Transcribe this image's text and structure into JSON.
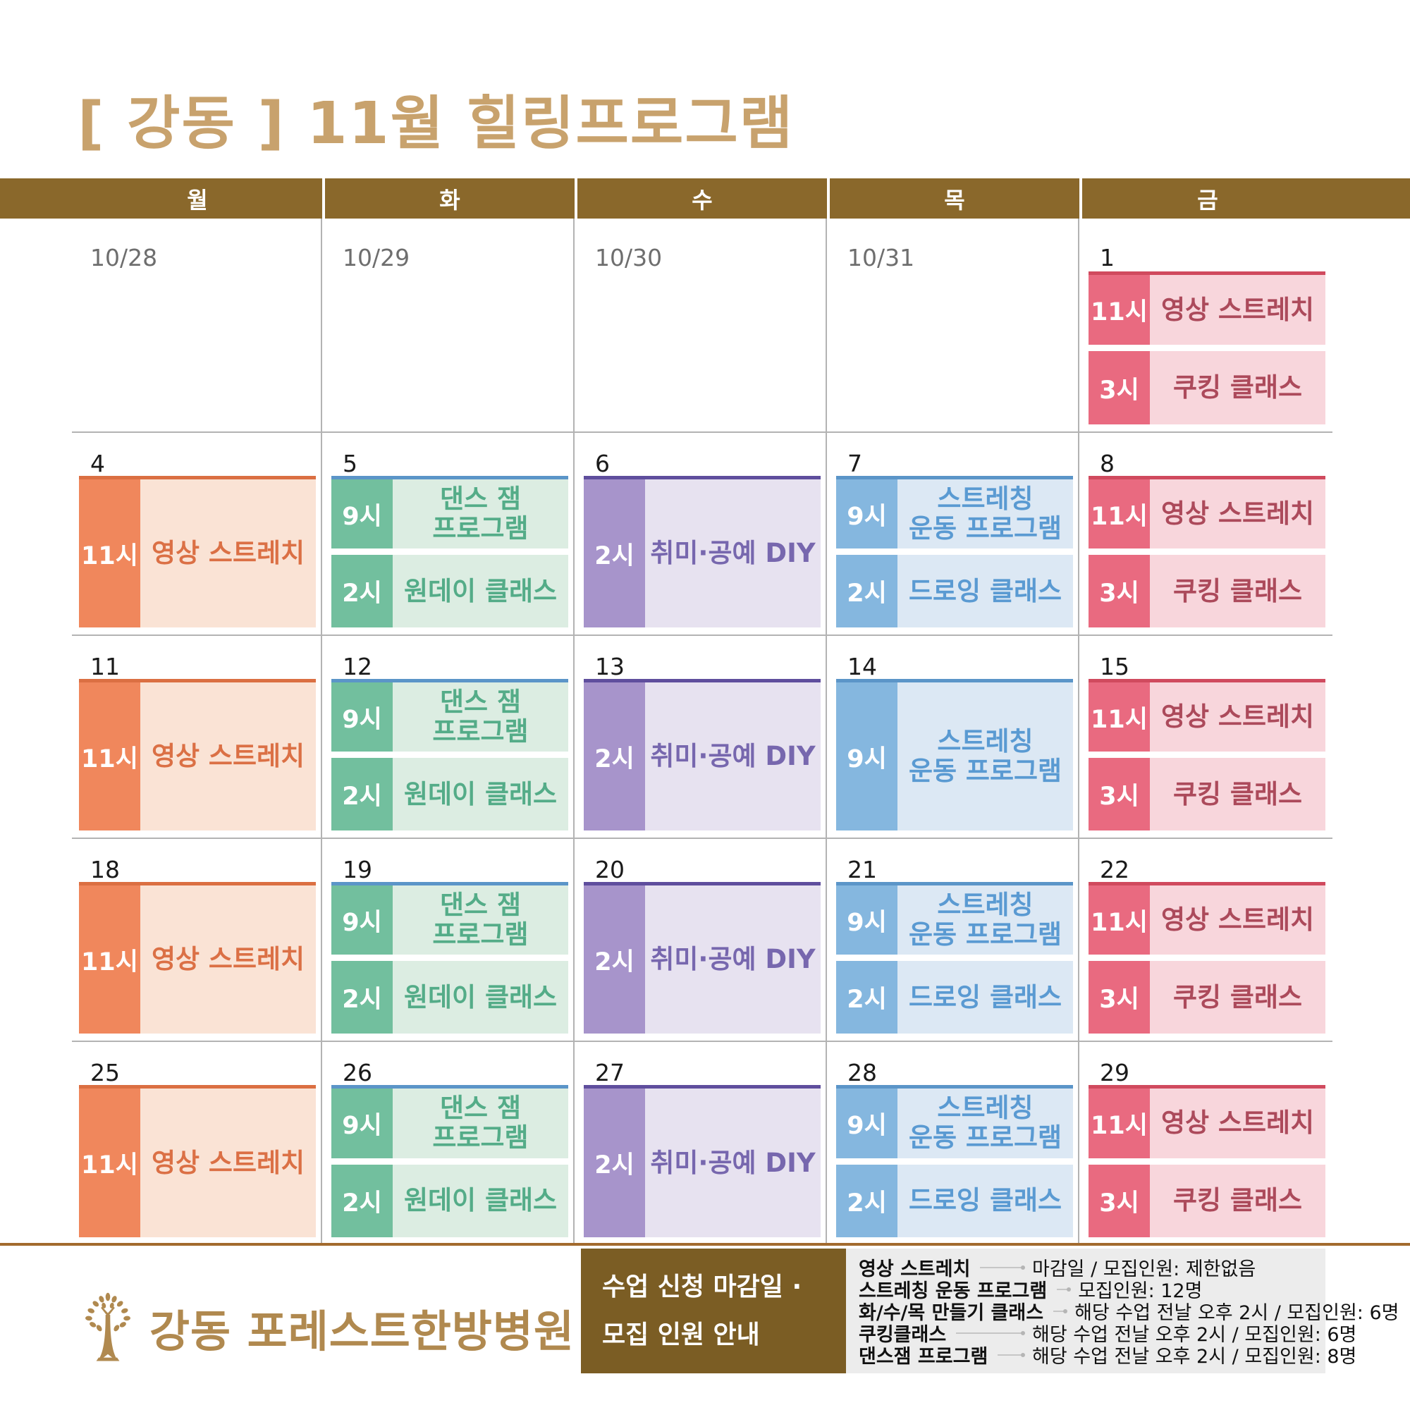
{
  "title": "[ 강동 ] 11월 힐링프로그램",
  "header_days": [
    "월",
    "화",
    "수",
    "목",
    "금"
  ],
  "colors": {
    "title": "#C8A26D",
    "header_bar": "#8A682B",
    "grid_line": "#B3B3B3",
    "date": "#1A1A1A",
    "date_prev_month": "#6E6E6E",
    "divider": "#A26A2E",
    "logo": "#B0894F",
    "info_box_bg": "#7B5D24",
    "info_panel_bg": "#ECECEC",
    "themes": {
      "mon": {
        "border": "#DB6F42",
        "time_bg": "#F0875C",
        "bg": "#FAE3D5",
        "text": "#DB7045"
      },
      "tue": {
        "border": "#5B95C8",
        "time_bg": "#72BF9E",
        "bg": "#DCEDE2",
        "text": "#54AC88"
      },
      "wed": {
        "border": "#5F4E9D",
        "time_bg": "#A794CB",
        "bg": "#E7E2F0",
        "text": "#7767AE"
      },
      "thu": {
        "border": "#5B95C8",
        "time_bg": "#85B7DF",
        "bg": "#DCE8F4",
        "text": "#5A9AD2"
      },
      "fri": {
        "border": "#D04A5E",
        "time_bg": "#E96A80",
        "bg": "#F8D6DC",
        "text": "#AC4A5B"
      }
    }
  },
  "weeks": [
    [
      {
        "date": "10/28",
        "theme": "mon",
        "events": []
      },
      {
        "date": "10/29",
        "theme": "tue",
        "events": []
      },
      {
        "date": "10/30",
        "theme": "wed",
        "events": []
      },
      {
        "date": "10/31",
        "theme": "thu",
        "events": []
      },
      {
        "date": "1",
        "theme": "fri",
        "events": [
          {
            "time": "11시",
            "label": "영상 스트레치"
          },
          {
            "time": "3시",
            "label": "쿠킹 클래스"
          }
        ]
      }
    ],
    [
      {
        "date": "4",
        "theme": "mon",
        "events": [
          {
            "time": "11시",
            "label": "영상 스트레치"
          }
        ]
      },
      {
        "date": "5",
        "theme": "tue",
        "events": [
          {
            "time": "9시",
            "label": "댄스 잼\n프로그램"
          },
          {
            "time": "2시",
            "label": "원데이 클래스"
          }
        ]
      },
      {
        "date": "6",
        "theme": "wed",
        "events": [
          {
            "time": "2시",
            "label": "취미·공예 DIY"
          }
        ]
      },
      {
        "date": "7",
        "theme": "thu",
        "events": [
          {
            "time": "9시",
            "label": "스트레칭\n운동 프로그램"
          },
          {
            "time": "2시",
            "label": "드로잉 클래스"
          }
        ]
      },
      {
        "date": "8",
        "theme": "fri",
        "events": [
          {
            "time": "11시",
            "label": "영상 스트레치"
          },
          {
            "time": "3시",
            "label": "쿠킹 클래스"
          }
        ]
      }
    ],
    [
      {
        "date": "11",
        "theme": "mon",
        "events": [
          {
            "time": "11시",
            "label": "영상 스트레치"
          }
        ]
      },
      {
        "date": "12",
        "theme": "tue",
        "events": [
          {
            "time": "9시",
            "label": "댄스 잼\n프로그램"
          },
          {
            "time": "2시",
            "label": "원데이 클래스"
          }
        ]
      },
      {
        "date": "13",
        "theme": "wed",
        "events": [
          {
            "time": "2시",
            "label": "취미·공예 DIY"
          }
        ]
      },
      {
        "date": "14",
        "theme": "thu",
        "events": [
          {
            "time": "9시",
            "label": "스트레칭\n운동 프로그램"
          }
        ]
      },
      {
        "date": "15",
        "theme": "fri",
        "events": [
          {
            "time": "11시",
            "label": "영상 스트레치"
          },
          {
            "time": "3시",
            "label": "쿠킹 클래스"
          }
        ]
      }
    ],
    [
      {
        "date": "18",
        "theme": "mon",
        "events": [
          {
            "time": "11시",
            "label": "영상 스트레치"
          }
        ]
      },
      {
        "date": "19",
        "theme": "tue",
        "events": [
          {
            "time": "9시",
            "label": "댄스 잼\n프로그램"
          },
          {
            "time": "2시",
            "label": "원데이 클래스"
          }
        ]
      },
      {
        "date": "20",
        "theme": "wed",
        "events": [
          {
            "time": "2시",
            "label": "취미·공예 DIY"
          }
        ]
      },
      {
        "date": "21",
        "theme": "thu",
        "events": [
          {
            "time": "9시",
            "label": "스트레칭\n운동 프로그램"
          },
          {
            "time": "2시",
            "label": "드로잉 클래스"
          }
        ]
      },
      {
        "date": "22",
        "theme": "fri",
        "events": [
          {
            "time": "11시",
            "label": "영상 스트레치"
          },
          {
            "time": "3시",
            "label": "쿠킹 클래스"
          }
        ]
      }
    ],
    [
      {
        "date": "25",
        "theme": "mon",
        "events": [
          {
            "time": "11시",
            "label": "영상 스트레치"
          }
        ]
      },
      {
        "date": "26",
        "theme": "tue",
        "events": [
          {
            "time": "9시",
            "label": "댄스 잼\n프로그램"
          },
          {
            "time": "2시",
            "label": "원데이 클래스"
          }
        ]
      },
      {
        "date": "27",
        "theme": "wed",
        "events": [
          {
            "time": "2시",
            "label": "취미·공예 DIY"
          }
        ]
      },
      {
        "date": "28",
        "theme": "thu",
        "events": [
          {
            "time": "9시",
            "label": "스트레칭\n운동 프로그램"
          },
          {
            "time": "2시",
            "label": "드로잉 클래스"
          }
        ]
      },
      {
        "date": "29",
        "theme": "fri",
        "events": [
          {
            "time": "11시",
            "label": "영상 스트레치"
          },
          {
            "time": "3시",
            "label": "쿠킹 클래스"
          }
        ]
      }
    ]
  ],
  "footer": {
    "logo_text": "강동 포레스트한방병원",
    "info_box": {
      "line1": "수업 신청 마감일 ·",
      "line2": "모집 인원 안내"
    },
    "info_rows": [
      {
        "label": "영상 스트레치",
        "value": "마감일 / 모집인원: 제한없음"
      },
      {
        "label": "스트레칭 운동 프로그램",
        "value": "모집인원: 12명"
      },
      {
        "label": "화/수/목 만들기 클래스",
        "value": "해당 수업 전날 오후 2시 / 모집인원: 6명"
      },
      {
        "label": "쿠킹클래스",
        "value": "해당 수업 전날 오후 2시 / 모집인원: 6명"
      },
      {
        "label": "댄스잼 프로그램",
        "value": "해당 수업 전날 오후 2시 / 모집인원: 8명"
      }
    ]
  }
}
